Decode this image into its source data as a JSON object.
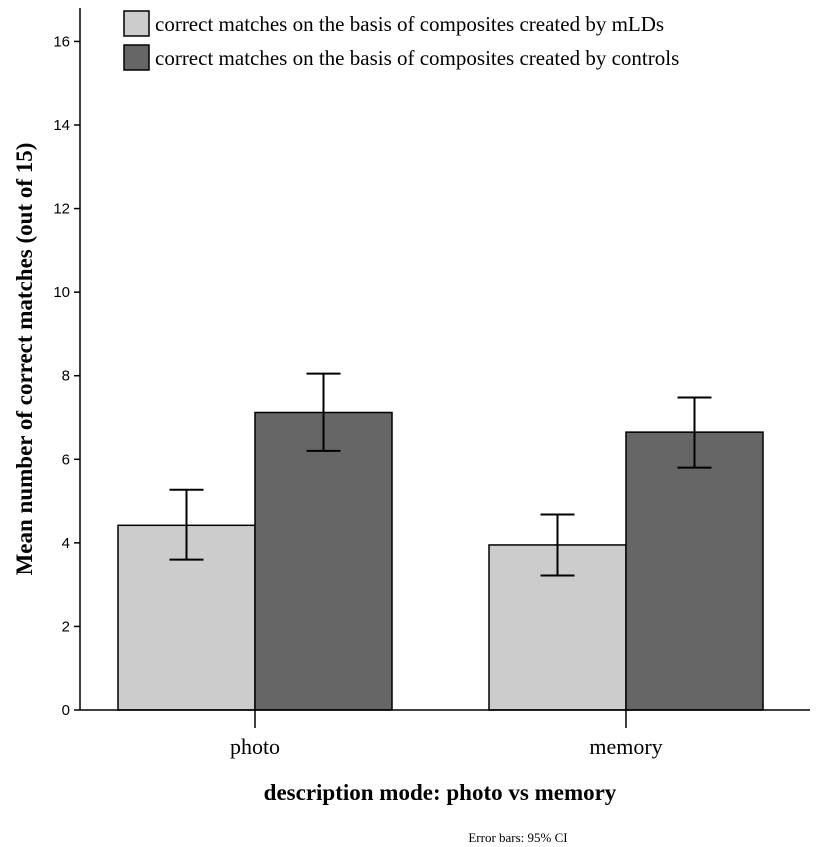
{
  "chart_data": {
    "type": "bar",
    "title": "",
    "xlabel": "description mode: photo vs memory",
    "ylabel": "Mean number of correct matches (out of 15)",
    "ylim": [
      0,
      16.8
    ],
    "yticks": [
      0,
      2,
      4,
      6,
      8,
      10,
      12,
      14,
      16
    ],
    "categories": [
      "photo",
      "memory"
    ],
    "series": [
      {
        "name": "correct matches on the basis of composites created by mLDs",
        "color": "#cccccc",
        "values": [
          4.42,
          3.95
        ],
        "ci_low": [
          3.6,
          3.22
        ],
        "ci_high": [
          5.27,
          4.68
        ]
      },
      {
        "name": "correct matches on the basis of composites created by controls",
        "color": "#666666",
        "values": [
          7.12,
          6.65
        ],
        "ci_low": [
          6.2,
          5.8
        ],
        "ci_high": [
          8.05,
          7.48
        ]
      }
    ],
    "legend_position": "top",
    "grid": false,
    "note": "Error bars: 95% CI"
  }
}
